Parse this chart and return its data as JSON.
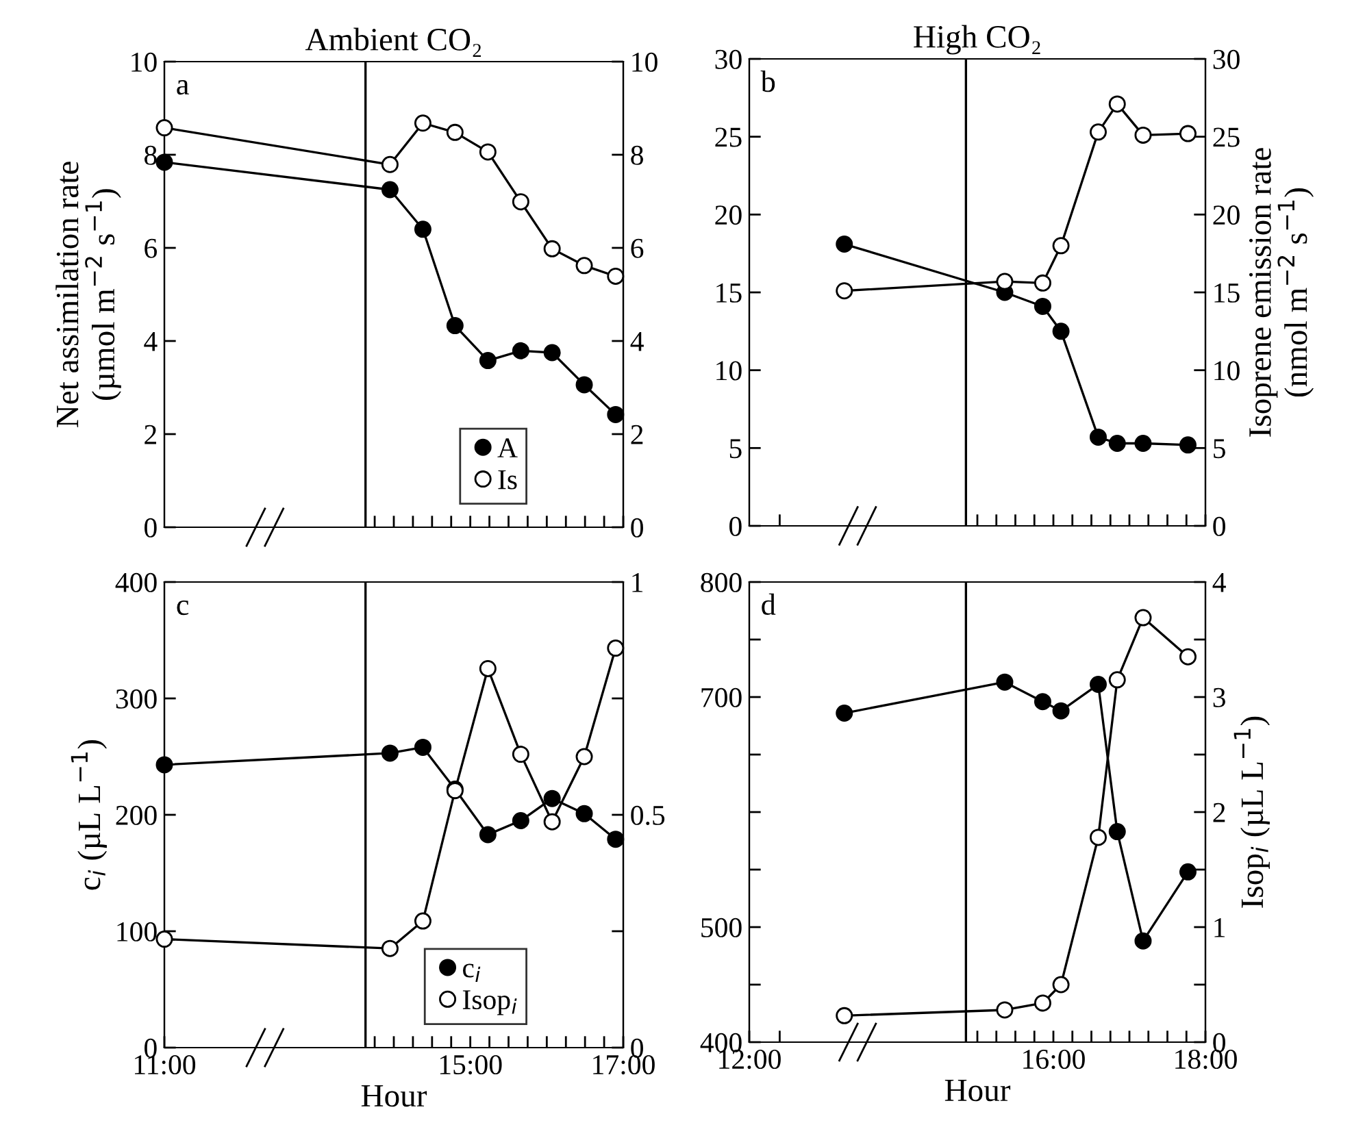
{
  "chart_data": [
    {
      "type": "line",
      "title": "Ambient CO₂",
      "ylabel": "Net assimilation rate\n(µmol m$^{−2}$ s$^{−1}$)",
      "annotations": [
        "a"
      ],
      "marker": "circle",
      "line_style": "solid",
      "grid": false,
      "legend": "bottom right",
      "tick_labels": "y",
      "x": [
        11,
        13.95,
        14.38,
        14.8,
        15.23,
        15.66,
        16.07,
        16.49,
        16.9
      ],
      "xlim": [
        11,
        17
      ],
      "xticks": [
        {
          "value": 13.75,
          "label": null
        },
        {
          "value": 14,
          "label": null
        },
        {
          "value": 14.25,
          "label": null
        },
        {
          "value": 14.5,
          "label": null
        },
        {
          "value": 14.75,
          "label": null
        },
        {
          "value": 15,
          "label": null
        },
        {
          "value": 15.25,
          "label": null
        },
        {
          "value": 15.5,
          "label": null
        },
        {
          "value": 15.75,
          "label": null
        },
        {
          "value": 16,
          "label": null
        },
        {
          "value": 16.25,
          "label": null
        },
        {
          "value": 16.5,
          "label": null
        },
        {
          "value": 16.75,
          "label": null
        },
        {
          "value": 17,
          "label": null
        }
      ],
      "ylim": [
        0,
        10
      ],
      "yticks": [
        0,
        2,
        4,
        6,
        8,
        10
      ],
      "y2lim": [
        0,
        10
      ],
      "y2ticks": [
        0,
        2,
        4,
        6,
        8,
        10
      ],
      "ref_lines": [
        {
          "axis": "x",
          "value": 13.63,
          "color": "#000000"
        }
      ],
      "series": [
        {
          "name": "A",
          "color": "#000000",
          "values": [
            7.84,
            7.25,
            6.4,
            4.33,
            3.58,
            3.79,
            3.75,
            3.06,
            2.42
          ]
        },
        {
          "name": "Is",
          "color": "#ffffff",
          "axis": "y2",
          "values": [
            8.58,
            7.79,
            8.68,
            8.48,
            8.06,
            6.99,
            5.98,
            5.62,
            5.39
          ]
        }
      ]
    },
    {
      "type": "line",
      "title": "High CO₂",
      "y2label": "Isoprene emission rate\n(nmol m$^{−2}$ s$^{−1}$)",
      "annotations": [
        "b"
      ],
      "marker": "circle",
      "line_style": "solid",
      "grid": false,
      "tick_labels": "y",
      "x": [
        13.25,
        15.36,
        15.86,
        16.1,
        16.59,
        16.84,
        17.18,
        17.77
      ],
      "xlim": [
        12,
        18
      ],
      "xticks": [
        {
          "value": 12.4,
          "label": null
        },
        {
          "value": 15,
          "label": null
        },
        {
          "value": 15.25,
          "label": null
        },
        {
          "value": 15.5,
          "label": null
        },
        {
          "value": 15.75,
          "label": null
        },
        {
          "value": 16,
          "label": null
        },
        {
          "value": 16.25,
          "label": null
        },
        {
          "value": 16.5,
          "label": null
        },
        {
          "value": 16.75,
          "label": null
        },
        {
          "value": 17,
          "label": null
        },
        {
          "value": 17.25,
          "label": null
        },
        {
          "value": 17.5,
          "label": null
        },
        {
          "value": 17.75,
          "label": null
        },
        {
          "value": 18,
          "label": null
        }
      ],
      "ylim": [
        0,
        30
      ],
      "yticks": [
        0,
        5,
        10,
        15,
        20,
        25,
        30
      ],
      "y2lim": [
        0,
        30
      ],
      "y2ticks": [
        0,
        5,
        10,
        15,
        20,
        25,
        30
      ],
      "ref_lines": [
        {
          "axis": "x",
          "value": 14.85,
          "color": "#000000"
        }
      ],
      "series": [
        {
          "color": "#000000",
          "values": [
            18.1,
            15.0,
            14.1,
            12.5,
            5.7,
            5.3,
            5.3,
            5.2
          ]
        },
        {
          "color": "#ffffff",
          "axis": "y2",
          "values": [
            15.1,
            15.7,
            15.6,
            18.0,
            25.3,
            27.1,
            25.1,
            25.2
          ]
        }
      ]
    },
    {
      "type": "line",
      "xlabel": "Hour",
      "ylabel": "c$_{i}$ (µL L$^{−1}$)",
      "annotations": [
        "c"
      ],
      "marker": "circle",
      "line_style": "solid",
      "grid": false,
      "legend": "bottom right",
      "x": [
        11,
        13.95,
        14.38,
        14.8,
        15.23,
        15.66,
        16.07,
        16.49,
        16.9
      ],
      "xlim": [
        11,
        17
      ],
      "xticks": [
        {
          "value": 11,
          "label": "11:00"
        },
        {
          "value": 13.75,
          "label": null
        },
        {
          "value": 14,
          "label": null
        },
        {
          "value": 14.25,
          "label": null
        },
        {
          "value": 14.5,
          "label": null
        },
        {
          "value": 14.75,
          "label": null
        },
        {
          "value": 15,
          "label": "15:00"
        },
        {
          "value": 15.25,
          "label": null
        },
        {
          "value": 15.5,
          "label": null
        },
        {
          "value": 15.75,
          "label": null
        },
        {
          "value": 16,
          "label": null
        },
        {
          "value": 16.25,
          "label": null
        },
        {
          "value": 16.5,
          "label": null
        },
        {
          "value": 16.75,
          "label": null
        },
        {
          "value": 17,
          "label": "17:00"
        }
      ],
      "ylim": [
        0,
        400
      ],
      "yticks": [
        0,
        100,
        200,
        300,
        400
      ],
      "y2lim": [
        0,
        1
      ],
      "y2ticks": [
        0,
        {
          "value": 0.25,
          "label": null
        },
        0.5,
        {
          "value": 0.75,
          "label": null
        },
        1
      ],
      "ref_lines": [
        {
          "axis": "x",
          "value": 13.63,
          "color": "#000000"
        }
      ],
      "series": [
        {
          "name": "c$_{i}$",
          "color": "#000000",
          "values": [
            243,
            253,
            258,
            222,
            183,
            195,
            214,
            201,
            179
          ]
        },
        {
          "name": "Isop$_{i}$",
          "color": "#ffffff",
          "axis": "y2",
          "values": [
            0.233,
            0.213,
            0.272,
            0.552,
            0.814,
            0.63,
            0.485,
            0.625,
            0.858
          ]
        }
      ]
    },
    {
      "type": "line",
      "xlabel": "Hour",
      "y2label": "Isop$_{i}$ (µL L$^{−1}$)",
      "annotations": [
        "d"
      ],
      "marker": "circle",
      "line_style": "solid",
      "grid": false,
      "x": [
        13.25,
        15.36,
        15.86,
        16.1,
        16.59,
        16.84,
        17.18,
        17.77
      ],
      "xlim": [
        12,
        18
      ],
      "xticks": [
        {
          "value": 12,
          "label": "12:00"
        },
        {
          "value": 12.4,
          "label": null
        },
        {
          "value": 15,
          "label": null
        },
        {
          "value": 15.25,
          "label": null
        },
        {
          "value": 15.5,
          "label": null
        },
        {
          "value": 15.75,
          "label": null
        },
        {
          "value": 16,
          "label": "16:00"
        },
        {
          "value": 16.25,
          "label": null
        },
        {
          "value": 16.5,
          "label": null
        },
        {
          "value": 16.75,
          "label": null
        },
        {
          "value": 17,
          "label": null
        },
        {
          "value": 17.25,
          "label": null
        },
        {
          "value": 17.5,
          "label": null
        },
        {
          "value": 17.75,
          "label": null
        },
        {
          "value": 18,
          "label": "18:00"
        }
      ],
      "ylim": [
        400,
        800
      ],
      "yticks": [
        400,
        {
          "value": 450,
          "label": null
        },
        500,
        {
          "value": 550,
          "label": null
        },
        {
          "value": 600,
          "label": null
        },
        {
          "value": 650,
          "label": null
        },
        700,
        {
          "value": 750,
          "label": null
        },
        800
      ],
      "y2lim": [
        0,
        4
      ],
      "y2ticks": [
        0,
        {
          "value": 0.5,
          "label": null
        },
        1,
        {
          "value": 1.5,
          "label": null
        },
        2,
        {
          "value": 2.5,
          "label": null
        },
        3,
        {
          "value": 3.5,
          "label": null
        },
        4
      ],
      "ref_lines": [
        {
          "axis": "x",
          "value": 14.85,
          "color": "#000000"
        }
      ],
      "series": [
        {
          "color": "#000000",
          "values": [
            686,
            713,
            696,
            688,
            711,
            583,
            488,
            548
          ]
        },
        {
          "color": "#ffffff",
          "axis": "y2",
          "values": [
            0.23,
            0.28,
            0.34,
            0.5,
            1.78,
            3.15,
            3.69,
            3.35
          ]
        }
      ]
    }
  ]
}
